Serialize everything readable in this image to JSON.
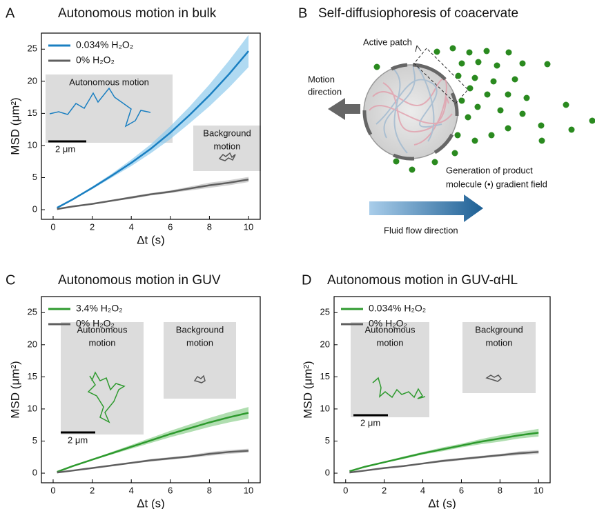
{
  "chart_data": [
    {
      "panel": "A",
      "type": "line",
      "title": "Autonomous motion in bulk",
      "xlabel": "Δt (s)",
      "ylabel": "MSD (μm²)",
      "x": [
        0.2,
        1,
        2,
        3,
        4,
        5,
        6,
        7,
        8,
        9,
        10
      ],
      "series": [
        {
          "name": "0.034% H₂O₂",
          "color": "#1a7fc1",
          "band_color": "#8ecbec",
          "values": [
            0.3,
            1.6,
            3.4,
            5.3,
            7.3,
            9.5,
            12.0,
            14.8,
            17.8,
            21.1,
            24.7
          ],
          "lower": [
            0.3,
            1.5,
            3.2,
            5.0,
            6.8,
            8.8,
            11.0,
            13.5,
            16.1,
            19.0,
            22.2
          ],
          "upper": [
            0.3,
            1.7,
            3.6,
            5.6,
            7.8,
            10.2,
            13.0,
            16.1,
            19.5,
            23.2,
            27.2
          ]
        },
        {
          "name": "0% H₂O₂",
          "color": "#5f5f5f",
          "band_color": "#bdbdbd",
          "values": [
            0.1,
            0.5,
            0.9,
            1.4,
            1.9,
            2.4,
            2.8,
            3.3,
            3.8,
            4.2,
            4.7
          ],
          "lower": [
            0.1,
            0.5,
            0.8,
            1.3,
            1.7,
            2.2,
            2.6,
            3.0,
            3.4,
            3.8,
            4.3
          ],
          "upper": [
            0.1,
            0.5,
            1.0,
            1.5,
            2.1,
            2.6,
            3.0,
            3.6,
            4.2,
            4.6,
            5.1
          ]
        }
      ],
      "xlim": [
        -0.6,
        10.6
      ],
      "ylim": [
        -1.5,
        27.5
      ],
      "xticks": [
        0,
        2,
        4,
        6,
        8,
        10
      ],
      "yticks": [
        0,
        5,
        10,
        15,
        20,
        25
      ],
      "annotations": {
        "autonomous": [
          "Autonomous motion"
        ],
        "background": [
          "Background",
          "motion"
        ],
        "scale_bar": "2 μm"
      }
    },
    {
      "panel": "C",
      "type": "line",
      "title": "Autonomous motion in GUV",
      "xlabel": "Δt (s)",
      "ylabel": "MSD (μm²)",
      "x": [
        0.2,
        1,
        2,
        3,
        4,
        5,
        6,
        7,
        8,
        9,
        10
      ],
      "series": [
        {
          "name": "3.4% H₂O₂",
          "color": "#2e9a2e",
          "band_color": "#8fd08f",
          "values": [
            0.2,
            1.1,
            2.1,
            3.1,
            4.1,
            5.1,
            6.1,
            7.0,
            7.9,
            8.7,
            9.4
          ],
          "lower": [
            0.2,
            1.0,
            2.0,
            2.9,
            3.8,
            4.7,
            5.6,
            6.4,
            7.2,
            7.9,
            8.5
          ],
          "upper": [
            0.2,
            1.2,
            2.2,
            3.3,
            4.4,
            5.5,
            6.6,
            7.6,
            8.6,
            9.5,
            10.3
          ]
        },
        {
          "name": "0% H₂O₂",
          "color": "#5f5f5f",
          "band_color": "#bdbdbd",
          "values": [
            0.1,
            0.4,
            0.8,
            1.2,
            1.6,
            2.0,
            2.3,
            2.6,
            3.0,
            3.3,
            3.5
          ],
          "lower": [
            0.1,
            0.4,
            0.7,
            1.1,
            1.5,
            1.8,
            2.1,
            2.4,
            2.7,
            3.0,
            3.2
          ],
          "upper": [
            0.1,
            0.4,
            0.9,
            1.3,
            1.7,
            2.2,
            2.5,
            2.8,
            3.3,
            3.6,
            3.8
          ]
        }
      ],
      "xlim": [
        -0.6,
        10.6
      ],
      "ylim": [
        -1.5,
        27.5
      ],
      "xticks": [
        0,
        2,
        4,
        6,
        8,
        10
      ],
      "yticks": [
        0,
        5,
        10,
        15,
        20,
        25
      ],
      "annotations": {
        "autonomous": [
          "Autonomous",
          "motion"
        ],
        "background": [
          "Background",
          "motion"
        ],
        "scale_bar": "2 μm"
      }
    },
    {
      "panel": "D",
      "type": "line",
      "title": "Autonomous motion in GUV-αHL",
      "xlabel": "Δt (s)",
      "ylabel": "MSD (μm²)",
      "x": [
        0.2,
        1,
        2,
        3,
        4,
        5,
        6,
        7,
        8,
        9,
        10
      ],
      "series": [
        {
          "name": "0.034% H₂O₂",
          "color": "#2e9a2e",
          "band_color": "#8fd08f",
          "values": [
            0.3,
            1.0,
            1.7,
            2.4,
            3.1,
            3.7,
            4.3,
            4.9,
            5.4,
            5.9,
            6.3
          ],
          "lower": [
            0.3,
            0.9,
            1.6,
            2.2,
            2.9,
            3.4,
            4.0,
            4.5,
            4.9,
            5.4,
            5.7
          ],
          "upper": [
            0.3,
            1.1,
            1.8,
            2.6,
            3.3,
            4.0,
            4.6,
            5.3,
            5.9,
            6.4,
            6.9
          ]
        },
        {
          "name": "0% H₂O₂",
          "color": "#5f5f5f",
          "band_color": "#bdbdbd",
          "values": [
            0.1,
            0.4,
            0.8,
            1.1,
            1.5,
            1.9,
            2.2,
            2.5,
            2.8,
            3.1,
            3.3
          ],
          "lower": [
            0.1,
            0.4,
            0.7,
            1.0,
            1.4,
            1.7,
            2.0,
            2.3,
            2.6,
            2.8,
            3.0
          ],
          "upper": [
            0.1,
            0.4,
            0.9,
            1.2,
            1.6,
            2.1,
            2.4,
            2.7,
            3.0,
            3.4,
            3.6
          ]
        }
      ],
      "xlim": [
        -0.6,
        10.6
      ],
      "ylim": [
        -1.5,
        27.5
      ],
      "xticks": [
        0,
        2,
        4,
        6,
        8,
        10
      ],
      "yticks": [
        0,
        5,
        10,
        15,
        20,
        25
      ],
      "annotations": {
        "autonomous": [
          "Autonomous",
          "motion"
        ],
        "background": [
          "Background",
          "motion"
        ],
        "scale_bar": "2 μm"
      }
    }
  ],
  "diagram": {
    "panel": "B",
    "title": "Self-diffusiophoresis of coacervate",
    "active_patch": "Active patch",
    "motion_direction": [
      "Motion",
      "direction"
    ],
    "product": [
      "Generation of product",
      "molecule (•) gradient field"
    ],
    "fluid_flow": "Fluid flow direction"
  }
}
